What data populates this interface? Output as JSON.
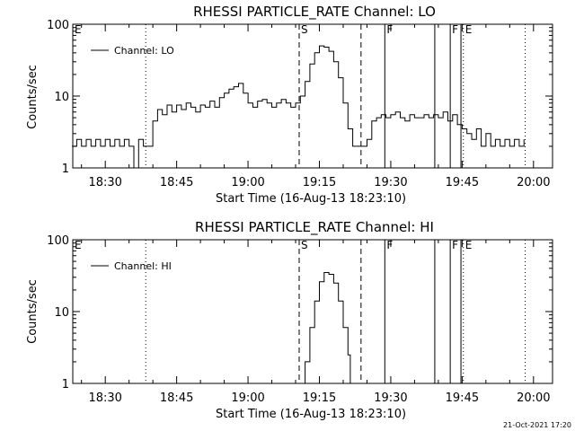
{
  "chart_data": [
    {
      "type": "line",
      "title": "RHESSI PARTICLE_RATE Channel: LO",
      "xlabel": "Start Time (16-Aug-13 18:23:10)",
      "ylabel": "Counts/sec",
      "yscale": "log",
      "xlim": [
        "18:23:10",
        "20:04:00"
      ],
      "ylim": [
        1,
        100
      ],
      "x_ticks": [
        "18:30",
        "18:45",
        "19:00",
        "19:15",
        "19:30",
        "19:45",
        "20:00"
      ],
      "y_ticks": [
        "1",
        "10",
        "100"
      ],
      "legend": {
        "label": "Channel: LO",
        "placement": "top-left"
      },
      "series": [
        {
          "name": "Channel: LO",
          "points": [
            [
              "18:23:00",
              2
            ],
            [
              "18:24:00",
              2.5
            ],
            [
              "18:25:00",
              2
            ],
            [
              "18:26:00",
              2.5
            ],
            [
              "18:27:00",
              2
            ],
            [
              "18:28:00",
              2.5
            ],
            [
              "18:29:00",
              2
            ],
            [
              "18:30:00",
              2.5
            ],
            [
              "18:31:00",
              2
            ],
            [
              "18:32:00",
              2.5
            ],
            [
              "18:33:00",
              2
            ],
            [
              "18:34:00",
              2.5
            ],
            [
              "18:35:00",
              2
            ],
            [
              "18:36:00",
              1
            ],
            [
              "18:37:00",
              2.5
            ],
            [
              "18:38:00",
              2
            ],
            [
              "18:39:00",
              2
            ],
            [
              "18:40:00",
              4.5
            ],
            [
              "18:41:00",
              6.5
            ],
            [
              "18:42:00",
              5.5
            ],
            [
              "18:43:00",
              7.5
            ],
            [
              "18:44:00",
              6
            ],
            [
              "18:45:00",
              7.5
            ],
            [
              "18:46:00",
              6.5
            ],
            [
              "18:47:00",
              8
            ],
            [
              "18:48:00",
              7
            ],
            [
              "18:49:00",
              6
            ],
            [
              "18:50:00",
              7.5
            ],
            [
              "18:51:00",
              7
            ],
            [
              "18:52:00",
              8.5
            ],
            [
              "18:53:00",
              7
            ],
            [
              "18:54:00",
              9.5
            ],
            [
              "18:55:00",
              11
            ],
            [
              "18:56:00",
              12.5
            ],
            [
              "18:57:00",
              13.5
            ],
            [
              "18:58:00",
              15
            ],
            [
              "18:59:00",
              11
            ],
            [
              "19:00:00",
              8
            ],
            [
              "19:01:00",
              7
            ],
            [
              "19:02:00",
              8.5
            ],
            [
              "19:03:00",
              9
            ],
            [
              "19:04:00",
              8
            ],
            [
              "19:05:00",
              7
            ],
            [
              "19:06:00",
              8
            ],
            [
              "19:07:00",
              9
            ],
            [
              "19:08:00",
              8
            ],
            [
              "19:09:00",
              7
            ],
            [
              "19:10:00",
              8
            ],
            [
              "19:11:00",
              10
            ],
            [
              "19:12:00",
              16
            ],
            [
              "19:13:00",
              28
            ],
            [
              "19:14:00",
              40
            ],
            [
              "19:15:00",
              50
            ],
            [
              "19:16:00",
              48
            ],
            [
              "19:17:00",
              42
            ],
            [
              "19:18:00",
              30
            ],
            [
              "19:19:00",
              18
            ],
            [
              "19:20:00",
              8
            ],
            [
              "19:21:00",
              3.5
            ],
            [
              "19:22:00",
              2
            ],
            [
              "19:23:00",
              2
            ],
            [
              "19:24:00",
              2
            ],
            [
              "19:25:00",
              2.5
            ],
            [
              "19:26:00",
              4.5
            ],
            [
              "19:27:00",
              5
            ],
            [
              "19:28:00",
              5.5
            ],
            [
              "19:29:00",
              5
            ],
            [
              "19:30:00",
              5.5
            ],
            [
              "19:31:00",
              6
            ],
            [
              "19:32:00",
              5
            ],
            [
              "19:33:00",
              4.5
            ],
            [
              "19:34:00",
              5.5
            ],
            [
              "19:35:00",
              5
            ],
            [
              "19:36:00",
              5
            ],
            [
              "19:37:00",
              5.5
            ],
            [
              "19:38:00",
              5
            ],
            [
              "19:39:00",
              5.5
            ],
            [
              "19:40:00",
              5
            ],
            [
              "19:41:00",
              6
            ],
            [
              "19:42:00",
              4.5
            ],
            [
              "19:43:00",
              5.5
            ],
            [
              "19:44:00",
              4
            ],
            [
              "19:45:00",
              3.5
            ],
            [
              "19:46:00",
              3
            ],
            [
              "19:47:00",
              2.5
            ],
            [
              "19:48:00",
              3.5
            ],
            [
              "19:49:00",
              2
            ],
            [
              "19:50:00",
              3
            ],
            [
              "19:51:00",
              2
            ],
            [
              "19:52:00",
              2.5
            ],
            [
              "19:53:00",
              2
            ],
            [
              "19:54:00",
              2.5
            ],
            [
              "19:55:00",
              2
            ],
            [
              "19:56:00",
              2.5
            ],
            [
              "19:57:00",
              2
            ],
            [
              "19:58:00",
              2.5
            ]
          ]
        }
      ],
      "markers": [
        {
          "label": "E",
          "time": "18:23:10",
          "style": "none"
        },
        {
          "label": "",
          "time": "18:38:30",
          "style": "dotted"
        },
        {
          "label": "S",
          "time": "19:10:45",
          "style": "dashed"
        },
        {
          "label": "",
          "time": "19:23:45",
          "style": "dashed"
        },
        {
          "label": "F",
          "time": "19:28:45",
          "style": "solid"
        },
        {
          "label": "",
          "time": "19:39:15",
          "style": "solid"
        },
        {
          "label": "F",
          "time": "19:42:30",
          "style": "solid"
        },
        {
          "label": "",
          "time": "19:44:45",
          "style": "solid"
        },
        {
          "label": "E",
          "time": "19:45:15",
          "style": "dotted"
        },
        {
          "label": "",
          "time": "19:58:15",
          "style": "dotted"
        }
      ]
    },
    {
      "type": "line",
      "title": "RHESSI PARTICLE_RATE Channel: HI",
      "xlabel": "Start Time (16-Aug-13 18:23:10)",
      "ylabel": "Counts/sec",
      "yscale": "log",
      "xlim": [
        "18:23:10",
        "20:04:00"
      ],
      "ylim": [
        1,
        100
      ],
      "x_ticks": [
        "18:30",
        "18:45",
        "19:00",
        "19:15",
        "19:30",
        "19:45",
        "20:00"
      ],
      "y_ticks": [
        "1",
        "10",
        "100"
      ],
      "legend": {
        "label": "Channel: HI",
        "placement": "top-left"
      },
      "series": [
        {
          "name": "Channel: HI",
          "points": [
            [
              "19:11:00",
              1
            ],
            [
              "19:12:00",
              2
            ],
            [
              "19:13:00",
              6
            ],
            [
              "19:14:00",
              14
            ],
            [
              "19:15:00",
              26
            ],
            [
              "19:16:00",
              35
            ],
            [
              "19:17:00",
              33
            ],
            [
              "19:18:00",
              25
            ],
            [
              "19:19:00",
              14
            ],
            [
              "19:20:00",
              6
            ],
            [
              "19:21:00",
              2.5
            ],
            [
              "19:21:30",
              1
            ]
          ]
        }
      ],
      "markers": [
        {
          "label": "E",
          "time": "18:23:10",
          "style": "none"
        },
        {
          "label": "",
          "time": "18:38:30",
          "style": "dotted"
        },
        {
          "label": "S",
          "time": "19:10:45",
          "style": "dashed"
        },
        {
          "label": "",
          "time": "19:23:45",
          "style": "dashed"
        },
        {
          "label": "F",
          "time": "19:28:45",
          "style": "solid"
        },
        {
          "label": "",
          "time": "19:39:15",
          "style": "solid"
        },
        {
          "label": "F",
          "time": "19:42:30",
          "style": "solid"
        },
        {
          "label": "",
          "time": "19:44:45",
          "style": "solid"
        },
        {
          "label": "E",
          "time": "19:45:15",
          "style": "dotted"
        },
        {
          "label": "",
          "time": "19:58:15",
          "style": "dotted"
        }
      ]
    }
  ],
  "footer": {
    "date_stamp": "21-Oct-2021 17:20"
  }
}
